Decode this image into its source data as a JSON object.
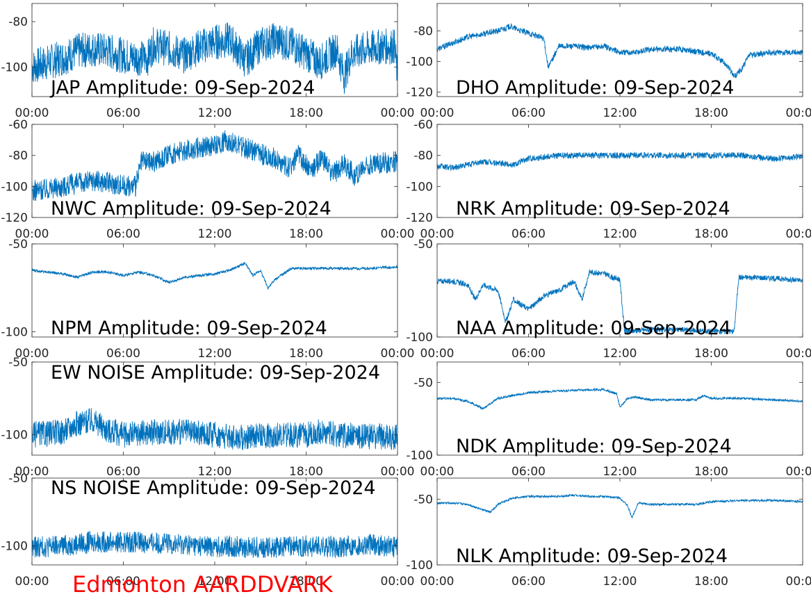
{
  "footer": {
    "label": "Edmonton AARDDVARK",
    "color": "#ff0000"
  },
  "line_color": "#0072bd",
  "chart_data": [
    {
      "type": "line",
      "title": "JAP Amplitude: 09-Sep-2024",
      "x_ticks": [
        "00:00",
        "06:00",
        "12:00",
        "18:00",
        "00:00"
      ],
      "xlim": [
        0,
        24
      ],
      "ylim": [
        -113,
        -72
      ],
      "y_ticks": [
        {
          "value": -80,
          "label": "-80"
        },
        {
          "value": -100,
          "label": "-100"
        }
      ],
      "series": [
        {
          "x": [
            0,
            1,
            2,
            3,
            4,
            5,
            6,
            7,
            7.6,
            8,
            9,
            10,
            11,
            12,
            13,
            14,
            15,
            16,
            17,
            18,
            18.9,
            20,
            20.5,
            21,
            22,
            23,
            23.8,
            24
          ],
          "y": [
            -100,
            -98,
            -96,
            -93,
            -92,
            -93,
            -95,
            -96,
            -96,
            -90,
            -92,
            -95,
            -91,
            -89,
            -88,
            -97,
            -90,
            -88,
            -90,
            -94,
            -98,
            -92,
            -104,
            -94,
            -92,
            -91,
            -91,
            -104
          ],
          "noise": 8
        }
      ]
    },
    {
      "type": "line",
      "title": "DHO Amplitude: 09-Sep-2024",
      "x_ticks": [
        "00:00",
        "06:00",
        "12:00",
        "18:00",
        "00:00"
      ],
      "xlim": [
        0,
        24
      ],
      "ylim": [
        -123,
        -62
      ],
      "y_ticks": [
        {
          "value": -80,
          "label": "-80"
        },
        {
          "value": -100,
          "label": "-100"
        },
        {
          "value": -120,
          "label": "-120"
        }
      ],
      "series": [
        {
          "x": [
            0,
            1,
            2,
            3,
            4,
            4.8,
            5.5,
            6.5,
            7,
            7.3,
            8,
            9,
            10,
            11,
            12,
            13,
            14,
            16,
            18,
            19,
            19.5,
            20,
            20.5,
            22,
            24
          ],
          "y": [
            -92,
            -88,
            -84,
            -82,
            -80,
            -77,
            -80,
            -83,
            -85,
            -104,
            -90,
            -90,
            -91,
            -90,
            -94,
            -94,
            -92,
            -92,
            -95,
            -102,
            -110,
            -105,
            -96,
            -94,
            -94
          ],
          "noise": 2
        }
      ]
    },
    {
      "type": "line",
      "title": "NWC Amplitude: 09-Sep-2024",
      "x_ticks": [
        "00:00",
        "06:00",
        "12:00",
        "18:00",
        "00:00"
      ],
      "xlim": [
        0,
        24
      ],
      "ylim": [
        -120,
        -60
      ],
      "y_ticks": [
        {
          "value": -60,
          "label": "-60"
        },
        {
          "value": -80,
          "label": "-80"
        },
        {
          "value": -100,
          "label": "-100"
        },
        {
          "value": -120,
          "label": "-120"
        }
      ],
      "series": [
        {
          "x": [
            0,
            2,
            4,
            6,
            6.8,
            7.2,
            8,
            9,
            10,
            11,
            12,
            12.8,
            14,
            15,
            16,
            16.8,
            17.5,
            18.3,
            19,
            19.8,
            20.5,
            21.2,
            22,
            24
          ],
          "y": [
            -103,
            -100,
            -96,
            -99,
            -100,
            -84,
            -84,
            -80,
            -77,
            -75,
            -74,
            -70,
            -75,
            -79,
            -82,
            -88,
            -80,
            -90,
            -82,
            -92,
            -85,
            -93,
            -86,
            -84
          ],
          "noise": 7
        }
      ]
    },
    {
      "type": "line",
      "title": "NRK Amplitude: 09-Sep-2024",
      "x_ticks": [
        "00:00",
        "06:00",
        "12:00",
        "18:00",
        "00:00"
      ],
      "xlim": [
        0,
        24
      ],
      "ylim": [
        -120,
        -60
      ],
      "y_ticks": [
        {
          "value": -60,
          "label": "-60"
        },
        {
          "value": -80,
          "label": "-80"
        },
        {
          "value": -100,
          "label": "-100"
        },
        {
          "value": -120,
          "label": "-120"
        }
      ],
      "series": [
        {
          "x": [
            0,
            1,
            2,
            3,
            4,
            5,
            6,
            7,
            8,
            10,
            12,
            14,
            16,
            18,
            20,
            21,
            22,
            23,
            24
          ],
          "y": [
            -87,
            -88,
            -86,
            -84,
            -85,
            -86,
            -82,
            -81,
            -80,
            -80,
            -80,
            -80,
            -80,
            -80,
            -80,
            -81,
            -82,
            -82,
            -80
          ],
          "noise": 2
        }
      ]
    },
    {
      "type": "line",
      "title": "NPM Amplitude: 09-Sep-2024",
      "x_ticks": [
        "00:00",
        "06:00",
        "12:00",
        "18:00",
        "00:00"
      ],
      "xlim": [
        0,
        24
      ],
      "ylim": [
        -103,
        -50
      ],
      "y_ticks": [
        {
          "value": -50,
          "label": "-50"
        },
        {
          "value": -100,
          "label": "-100"
        }
      ],
      "series": [
        {
          "x": [
            0,
            2,
            3,
            4,
            5,
            6,
            7,
            8,
            9,
            10,
            11,
            12,
            13,
            13.5,
            14,
            14.5,
            15,
            15.5,
            16,
            17,
            18,
            20,
            22,
            24
          ],
          "y": [
            -65,
            -67,
            -69,
            -66,
            -66,
            -68,
            -66,
            -68,
            -72,
            -69,
            -68,
            -67,
            -65,
            -63,
            -61,
            -68,
            -65,
            -75,
            -70,
            -64,
            -64,
            -64,
            -64,
            -63
          ],
          "noise": 0.8
        }
      ]
    },
    {
      "type": "line",
      "title": "NAA Amplitude: 09-Sep-2024",
      "x_ticks": [
        "00:00",
        "06:00",
        "12:00",
        "18:00",
        "00:00"
      ],
      "xlim": [
        0,
        24
      ],
      "ylim": [
        -100,
        -50
      ],
      "y_ticks": [
        {
          "value": -50,
          "label": "-50"
        },
        {
          "value": -100,
          "label": "-100"
        }
      ],
      "series": [
        {
          "x": [
            0,
            1,
            2,
            2.5,
            3,
            4,
            4.5,
            5,
            6,
            7,
            8,
            9,
            9.5,
            10,
            11,
            11.5,
            12,
            12.3,
            14,
            16,
            18,
            19.5,
            19.8,
            21,
            23,
            24
          ],
          "y": [
            -70,
            -70,
            -72,
            -80,
            -72,
            -75,
            -92,
            -80,
            -85,
            -78,
            -75,
            -70,
            -80,
            -65,
            -66,
            -68,
            -69,
            -97,
            -96,
            -96,
            -97,
            -97,
            -68,
            -68,
            -69,
            -70
          ],
          "noise": 1.5
        }
      ]
    },
    {
      "type": "line",
      "title": "EW NOISE Amplitude: 09-Sep-2024",
      "x_ticks": [
        "00:00",
        "06:00",
        "12:00",
        "18:00",
        "00:00"
      ],
      "xlim": [
        0,
        24
      ],
      "ylim": [
        -114,
        -50
      ],
      "y_ticks": [
        {
          "value": -50,
          "label": "-50"
        },
        {
          "value": -100,
          "label": "-100"
        }
      ],
      "series": [
        {
          "x": [
            0,
            2,
            3,
            4,
            5,
            6,
            8,
            10,
            12,
            14,
            15,
            16,
            18,
            19,
            20,
            22,
            24
          ],
          "y": [
            -100,
            -98,
            -92,
            -90,
            -97,
            -100,
            -98,
            -98,
            -100,
            -102,
            -101,
            -100,
            -100,
            -98,
            -100,
            -101,
            -102
          ],
          "noise": 9
        }
      ]
    },
    {
      "type": "line",
      "title": "NDK Amplitude: 09-Sep-2024",
      "x_ticks": [
        "00:00",
        "06:00",
        "12:00",
        "18:00",
        "00:00"
      ],
      "xlim": [
        0,
        24
      ],
      "ylim": [
        -100,
        -36
      ],
      "y_ticks": [
        {
          "value": -50,
          "label": "-50"
        },
        {
          "value": -100,
          "label": "-100"
        }
      ],
      "series": [
        {
          "x": [
            0,
            1,
            2,
            3,
            4,
            6,
            8,
            10,
            11,
            11.8,
            12,
            12.5,
            13,
            14,
            16,
            17,
            17.5,
            18,
            20,
            22,
            24
          ],
          "y": [
            -61,
            -61,
            -63,
            -68,
            -61,
            -57,
            -56,
            -55,
            -55,
            -58,
            -67,
            -61,
            -60,
            -62,
            -62,
            -62,
            -59,
            -61,
            -61,
            -62,
            -63
          ],
          "noise": 0.8
        }
      ]
    },
    {
      "type": "line",
      "title": "NS NOISE Amplitude: 09-Sep-2024",
      "x_ticks": [
        "00:00",
        "06:00",
        "12:00",
        "18:00",
        "00:00"
      ],
      "xlim": [
        0,
        24
      ],
      "ylim": [
        -114,
        -50
      ],
      "y_ticks": [
        {
          "value": -50,
          "label": "-50"
        },
        {
          "value": -100,
          "label": "-100"
        }
      ],
      "series": [
        {
          "x": [
            0,
            2,
            4,
            6,
            8,
            10,
            12,
            13,
            14,
            16,
            18,
            20,
            22,
            24
          ],
          "y": [
            -101,
            -100,
            -97,
            -97,
            -98,
            -99,
            -101,
            -100,
            -101,
            -101,
            -100,
            -101,
            -99,
            -101
          ],
          "noise": 8
        }
      ]
    },
    {
      "type": "line",
      "title": "NLK Amplitude: 09-Sep-2024",
      "x_ticks": [
        "00:00",
        "06:00",
        "12:00",
        "18:00",
        "00:00"
      ],
      "xlim": [
        0,
        24
      ],
      "ylim": [
        -100,
        -34
      ],
      "y_ticks": [
        {
          "value": -50,
          "label": "-50"
        },
        {
          "value": -100,
          "label": "-100"
        }
      ],
      "series": [
        {
          "x": [
            0,
            1,
            2,
            3,
            3.5,
            4,
            5,
            6,
            8,
            9,
            10,
            11,
            12,
            12.5,
            12.8,
            13.2,
            14,
            16,
            17,
            18,
            20,
            22,
            24
          ],
          "y": [
            -53,
            -53,
            -54,
            -58,
            -60,
            -54,
            -49,
            -48,
            -48,
            -47,
            -48,
            -48,
            -49,
            -55,
            -64,
            -53,
            -54,
            -54,
            -54,
            -52,
            -51,
            -51,
            -52
          ],
          "noise": 0.8
        }
      ]
    }
  ]
}
